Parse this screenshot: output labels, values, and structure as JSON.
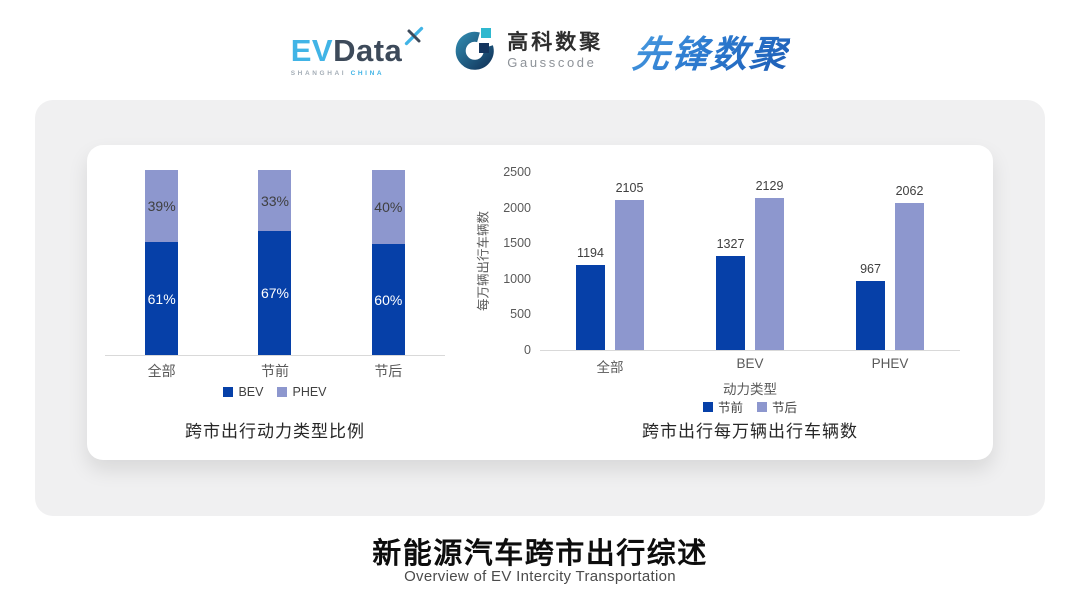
{
  "header": {
    "evdata": {
      "ev": "EV",
      "data": "Data",
      "sub_left": "SHANGHAI",
      "sub_right": "CHINA"
    },
    "gausscode": {
      "cn": "高科数聚",
      "en": "Gausscode"
    },
    "xianfeng": {
      "text": "先锋数聚"
    }
  },
  "theme": {
    "dark_blue": "#0640a8",
    "light_blue": "#8d97ce",
    "panel_bg": "#f0f0f1",
    "card_bg": "#ffffff",
    "axis_gray": "#d9d9d9"
  },
  "chart_data": [
    {
      "type": "bar",
      "subtype": "stacked-100-percent",
      "title": "跨市出行动力类型比例",
      "categories": [
        "全部",
        "节前",
        "节后"
      ],
      "series": [
        {
          "name": "BEV",
          "values": [
            61,
            67,
            60
          ],
          "unit": "%",
          "color": "#0640a8",
          "label_color": "#ffffff",
          "position": "bottom"
        },
        {
          "name": "PHEV",
          "values": [
            39,
            33,
            40
          ],
          "unit": "%",
          "color": "#8d97ce",
          "label_color": "#3f3f3f",
          "position": "top"
        }
      ],
      "legend": [
        "BEV",
        "PHEV"
      ],
      "legend_position": "bottom",
      "grid": false
    },
    {
      "type": "bar",
      "subtype": "grouped",
      "title": "跨市出行每万辆出行车辆数",
      "categories": [
        "全部",
        "BEV",
        "PHEV"
      ],
      "series": [
        {
          "name": "节前",
          "values": [
            1194,
            1327,
            967
          ],
          "color": "#0640a8"
        },
        {
          "name": "节后",
          "values": [
            2105,
            2129,
            2062
          ],
          "color": "#8d97ce"
        }
      ],
      "xlabel": "动力类型",
      "ylabel": "每万辆出行车辆数",
      "ylim": [
        0,
        2500
      ],
      "yticks": [
        0,
        500,
        1000,
        1500,
        2000,
        2500
      ],
      "legend": [
        "节前",
        "节后"
      ],
      "legend_position": "bottom",
      "grid": false
    }
  ],
  "footer": {
    "title": "新能源汽车跨市出行综述",
    "subtitle": "Overview of EV Intercity Transportation"
  }
}
